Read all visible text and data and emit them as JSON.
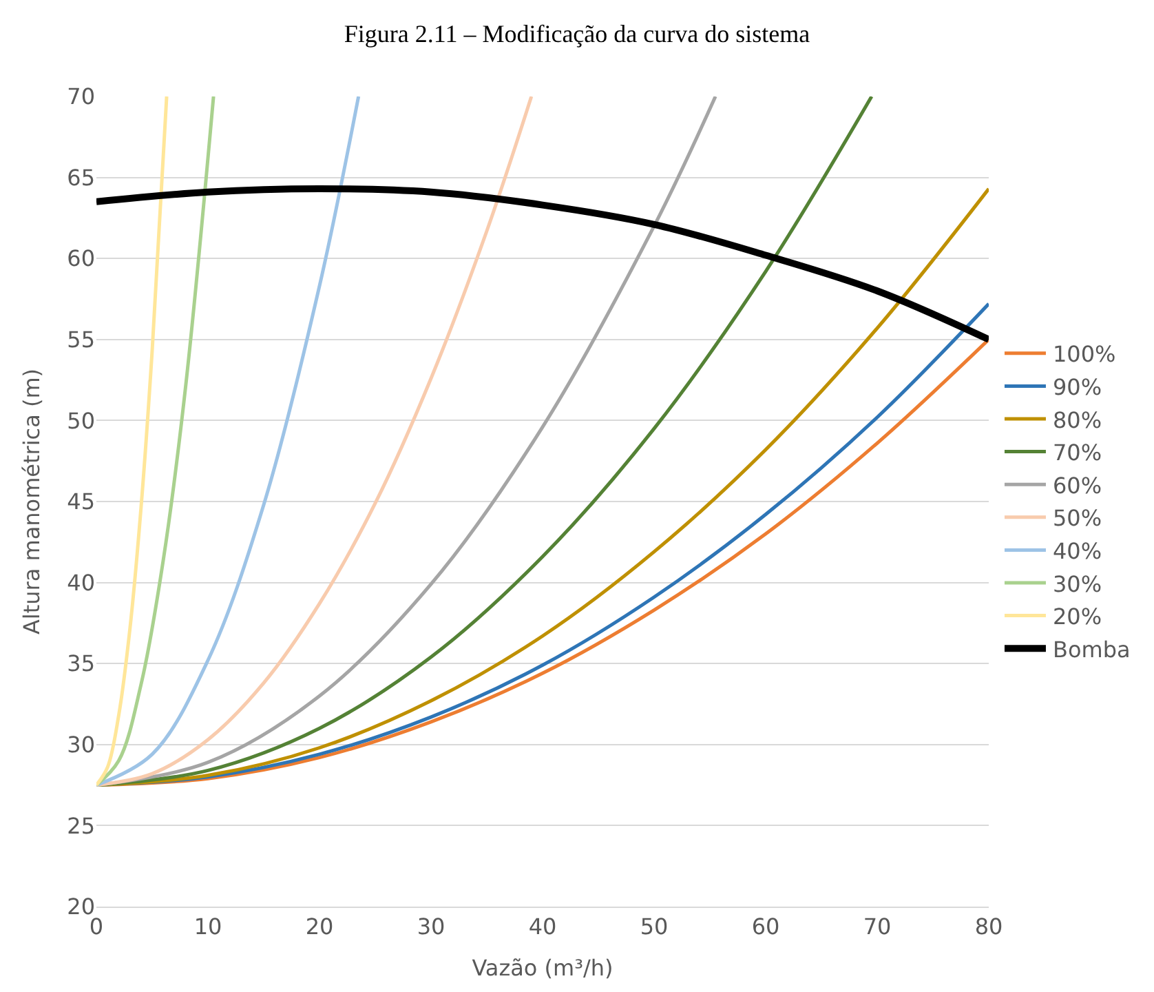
{
  "chart_data": {
    "type": "line",
    "title": "Figura 2.11 – Modificação da curva do sistema",
    "xlabel": "Vazão (m³/h)",
    "ylabel": "Altura manométrica (m)",
    "xlim": [
      0,
      80
    ],
    "xticks": [
      0,
      10,
      20,
      30,
      40,
      50,
      60,
      70,
      80
    ],
    "ylim": [
      20,
      70
    ],
    "yticks": [
      20,
      25,
      30,
      35,
      40,
      45,
      50,
      55,
      60,
      65,
      70
    ],
    "grid": "y",
    "legend": "right",
    "marker": "none",
    "line_style": "solid",
    "series": [
      {
        "name": "100%",
        "color": "#ed7d31",
        "x": [
          0,
          10,
          20,
          30,
          40,
          50,
          60,
          70,
          80
        ],
        "values": [
          27.5,
          27.9,
          29.2,
          31.4,
          34.4,
          38.3,
          43,
          48.6,
          55
        ]
      },
      {
        "name": "90%",
        "color": "#2e75b6",
        "x": [
          0,
          10,
          20,
          30,
          40,
          50,
          60,
          70,
          80
        ],
        "values": [
          27.5,
          28,
          29.4,
          31.7,
          34.9,
          39.1,
          44.2,
          50.2,
          57.2
        ]
      },
      {
        "name": "80%",
        "color": "#bf9000",
        "x": [
          0,
          10,
          20,
          30,
          40,
          50,
          60,
          70,
          80
        ],
        "values": [
          27.5,
          28.1,
          29.8,
          32.7,
          36.7,
          41.9,
          48.2,
          55.7,
          64.3
        ]
      },
      {
        "name": "70%",
        "color": "#548235",
        "x": [
          0,
          10,
          20,
          30,
          40,
          50,
          60,
          69.5
        ],
        "values": [
          27.5,
          28.4,
          31,
          35.4,
          41.6,
          49.5,
          59.2,
          70
        ]
      },
      {
        "name": "60%",
        "color": "#a5a5a5",
        "x": [
          0,
          10,
          20,
          30,
          40,
          50,
          55.5
        ],
        "values": [
          27.5,
          28.9,
          33,
          39.9,
          49.6,
          62,
          70
        ]
      },
      {
        "name": "50%",
        "color": "#f8cbad",
        "x": [
          0,
          5,
          10,
          15,
          20,
          25,
          30,
          35,
          39
        ],
        "values": [
          27.5,
          28.2,
          30.3,
          33.8,
          38.7,
          44.9,
          52.6,
          61.7,
          70
        ]
      },
      {
        "name": "40%",
        "color": "#9dc3e6",
        "x": [
          0,
          5,
          10,
          15,
          20,
          23.5
        ],
        "values": [
          27.5,
          29.4,
          35.2,
          44.8,
          58.3,
          70
        ]
      },
      {
        "name": "30%",
        "color": "#a9d18e",
        "x": [
          0,
          2,
          4,
          6,
          8,
          10.5
        ],
        "values": [
          27.5,
          29,
          33.7,
          41.4,
          52.1,
          70
        ]
      },
      {
        "name": "20%",
        "color": "#ffe699",
        "x": [
          0,
          1,
          2,
          3,
          4,
          5,
          6.3
        ],
        "values": [
          27.5,
          28.6,
          31.8,
          37.1,
          44.6,
          54.3,
          70
        ]
      },
      {
        "name": "Bomba",
        "color": "#000000",
        "x": [
          0,
          10,
          20,
          30,
          40,
          50,
          60,
          70,
          80
        ],
        "values": [
          63.5,
          64.1,
          64.3,
          64.1,
          63.3,
          62.1,
          60.2,
          58,
          55
        ]
      }
    ]
  }
}
